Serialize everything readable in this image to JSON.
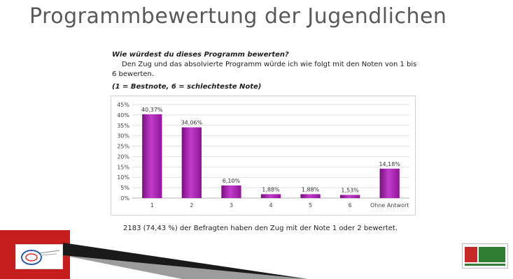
{
  "slide": {
    "title": "Programmbewertung der Jugendlichen"
  },
  "question": {
    "title": "Wie würdest du dieses Programm bewerten?",
    "text": "Den Zug und das absolvierte Programm würde ich wie folgt mit den Noten von 1 bis 6 bewerten.",
    "note": "(1 = Bestnote, 6 = schlechteste Note)"
  },
  "summary": "2183 (74,43 %) der Befragten haben den Zug mit der Note 1 oder 2 bewertet.",
  "chart_data": {
    "type": "bar",
    "categories": [
      "1",
      "2",
      "3",
      "4",
      "5",
      "6",
      "Ohne Antwort"
    ],
    "values": [
      40.37,
      34.06,
      6.1,
      1.88,
      1.88,
      1.53,
      14.18
    ],
    "data_labels": [
      "40,37%",
      "34,06%",
      "6,10%",
      "1,88%",
      "1,88%",
      "1,53%",
      "14,18%"
    ],
    "title": "",
    "xlabel": "",
    "ylabel": "",
    "ylim": [
      0,
      45
    ],
    "yticks": [
      0,
      5,
      10,
      15,
      20,
      25,
      30,
      35,
      40,
      45
    ],
    "ytick_labels": [
      "0%",
      "5%",
      "10%",
      "15%",
      "20%",
      "25%",
      "30%",
      "35%",
      "40%",
      "45%"
    ],
    "grid": true,
    "legend": "none",
    "bar_color": "#a020a8",
    "bar_color_light": "#d050d8"
  },
  "colors": {
    "title": "#595959",
    "corner_accent": "#cc1f1f"
  },
  "logos": {
    "left": "organization-logo-icon",
    "right": "verkehrswacht-logo-icon"
  }
}
